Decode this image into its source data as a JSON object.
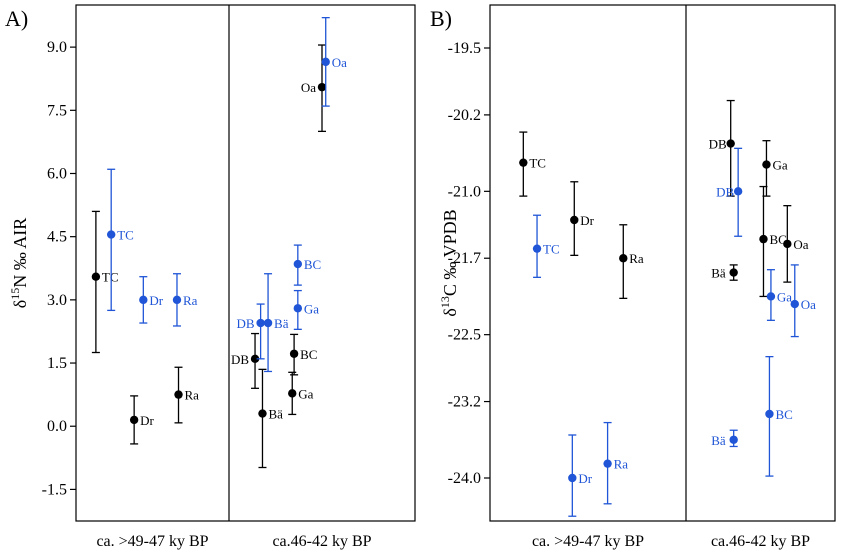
{
  "chart_data": [
    {
      "type": "scatter",
      "panel_label": "A)",
      "ylabel": "δ15N ‰ AIR",
      "ylim": [
        -2.25,
        10.0
      ],
      "yticks": [
        "9.0",
        "7.5",
        "6.0",
        "4.5",
        "3.0",
        "1.5",
        "0.0",
        "-1.5"
      ],
      "ytick_values": [
        9.0,
        7.5,
        6.0,
        4.5,
        3.0,
        1.5,
        0.0,
        -1.5
      ],
      "categories": [
        "ca. >49-47 ky BP",
        "ca.46-42 ky BP"
      ],
      "series": [
        {
          "color": "#000000",
          "points": [
            {
              "label": "TC",
              "group": 0,
              "x": 0.13,
              "y": 3.55,
              "low": 1.75,
              "high": 5.1
            },
            {
              "label": "Dr",
              "group": 0,
              "x": 0.38,
              "y": 0.15,
              "low": -0.42,
              "high": 0.72
            },
            {
              "label": "Ra",
              "group": 0,
              "x": 0.67,
              "y": 0.75,
              "low": 0.08,
              "high": 1.4
            },
            {
              "label": "DB",
              "group": 1,
              "x": 0.14,
              "y": 1.6,
              "low": 0.9,
              "high": 2.2
            },
            {
              "label": "Bä",
              "group": 1,
              "x": 0.18,
              "y": 0.3,
              "low": -0.98,
              "high": 1.35
            },
            {
              "label": "BC",
              "group": 1,
              "x": 0.35,
              "y": 1.72,
              "low": 1.22,
              "high": 2.18
            },
            {
              "label": "Ga",
              "group": 1,
              "x": 0.34,
              "y": 0.78,
              "low": 0.28,
              "high": 1.28
            },
            {
              "label": "Oa",
              "group": 1,
              "x": 0.5,
              "y": 8.05,
              "low": 7.0,
              "high": 9.05
            }
          ]
        },
        {
          "color": "#1f55d6",
          "points": [
            {
              "label": "TC",
              "group": 0,
              "x": 0.23,
              "y": 4.55,
              "low": 2.75,
              "high": 6.1
            },
            {
              "label": "Dr",
              "group": 0,
              "x": 0.44,
              "y": 3.0,
              "low": 2.45,
              "high": 3.55
            },
            {
              "label": "Ra",
              "group": 0,
              "x": 0.66,
              "y": 3.0,
              "low": 2.38,
              "high": 3.62
            },
            {
              "label": "DB",
              "group": 1,
              "x": 0.17,
              "y": 2.45,
              "low": 1.6,
              "high": 2.9
            },
            {
              "label": "Bä",
              "group": 1,
              "x": 0.21,
              "y": 2.45,
              "low": 1.3,
              "high": 3.62
            },
            {
              "label": "BC",
              "group": 1,
              "x": 0.37,
              "y": 3.85,
              "low": 3.35,
              "high": 4.3
            },
            {
              "label": "Ga",
              "group": 1,
              "x": 0.37,
              "y": 2.8,
              "low": 2.3,
              "high": 3.22
            },
            {
              "label": "Oa",
              "group": 1,
              "x": 0.52,
              "y": 8.65,
              "low": 7.6,
              "high": 9.7
            }
          ]
        }
      ]
    },
    {
      "type": "scatter",
      "panel_label": "B)",
      "ylabel": "δ13C ‰ VPDB",
      "ylim": [
        -24.45,
        -19.05
      ],
      "yticks": [
        "-19.5",
        "-20.2",
        "-21.0",
        "-21.7",
        "-22.5",
        "-23.2",
        "-24.0"
      ],
      "ytick_values": [
        -19.5,
        -20.2,
        -21.0,
        -21.7,
        -22.5,
        -23.2,
        -24.0
      ],
      "categories": [
        "ca. >49-47 ky BP",
        "ca.46-42 ky BP"
      ],
      "series": [
        {
          "color": "#000000",
          "points": [
            {
              "label": "TC",
              "group": 0,
              "x": 0.17,
              "y": -20.7,
              "low": -21.05,
              "high": -20.38
            },
            {
              "label": "Dr",
              "group": 0,
              "x": 0.43,
              "y": -21.3,
              "low": -21.67,
              "high": -20.9
            },
            {
              "label": "Ra",
              "group": 0,
              "x": 0.68,
              "y": -21.7,
              "low": -22.12,
              "high": -21.35
            },
            {
              "label": "DB",
              "group": 1,
              "x": 0.3,
              "y": -20.5,
              "low": -21.05,
              "high": -20.05
            },
            {
              "label": "Ga",
              "group": 1,
              "x": 0.54,
              "y": -20.72,
              "low": -21.05,
              "high": -20.47
            },
            {
              "label": "Bä",
              "group": 1,
              "x": 0.32,
              "y": -21.85,
              "low": -21.93,
              "high": -21.77
            },
            {
              "label": "BC",
              "group": 1,
              "x": 0.52,
              "y": -21.5,
              "low": -22.1,
              "high": -20.95
            },
            {
              "label": "Oa",
              "group": 1,
              "x": 0.68,
              "y": -21.55,
              "low": -21.95,
              "high": -21.15
            }
          ]
        },
        {
          "color": "#1f55d6",
          "points": [
            {
              "label": "TC",
              "group": 0,
              "x": 0.24,
              "y": -21.6,
              "low": -21.9,
              "high": -21.25
            },
            {
              "label": "Dr",
              "group": 0,
              "x": 0.42,
              "y": -24.0,
              "low": -24.4,
              "high": -23.55
            },
            {
              "label": "Ra",
              "group": 0,
              "x": 0.6,
              "y": -23.85,
              "low": -24.27,
              "high": -23.42
            },
            {
              "label": "DB",
              "group": 1,
              "x": 0.35,
              "y": -21.0,
              "low": -21.47,
              "high": -20.55
            },
            {
              "label": "Ga",
              "group": 1,
              "x": 0.57,
              "y": -22.1,
              "low": -22.35,
              "high": -21.82
            },
            {
              "label": "Oa",
              "group": 1,
              "x": 0.73,
              "y": -22.18,
              "low": -22.52,
              "high": -21.77
            },
            {
              "label": "Bä",
              "group": 1,
              "x": 0.32,
              "y": -23.6,
              "low": -23.67,
              "high": -23.5
            },
            {
              "label": "BC",
              "group": 1,
              "x": 0.56,
              "y": -23.33,
              "low": -23.98,
              "high": -22.73
            }
          ]
        }
      ]
    }
  ]
}
